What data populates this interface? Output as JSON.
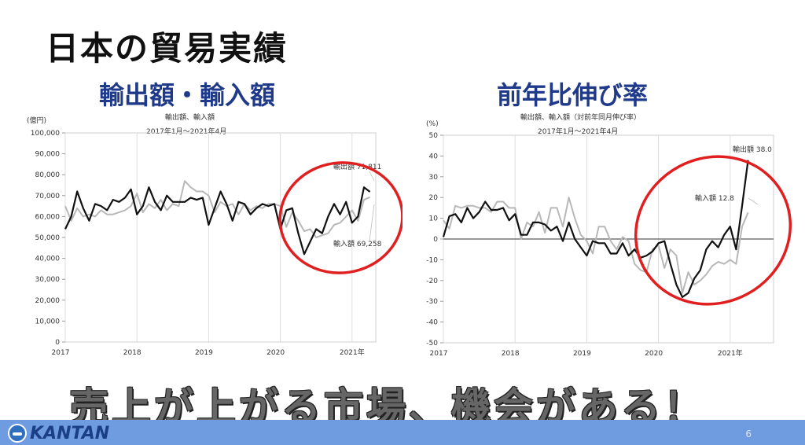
{
  "slide": {
    "title": "日本の貿易実績",
    "left_heading": "輸出額・輸入額",
    "right_heading": "前年比伸び率",
    "slogan": "売上が上がる市場、機会がある！",
    "brand": "KANTAN",
    "page_number": "6"
  },
  "colors": {
    "export_line": "#111111",
    "import_line": "#b8b8b8",
    "annotation_circle": "#e02020",
    "footer_bar": "#6f9be0",
    "heading": "#1f3a8a"
  },
  "chart_data": [
    {
      "type": "line",
      "title": "輸出額、輸入額",
      "subtitle": "2017年1月～2021年4月",
      "unit_label": "(億円)",
      "ylim": [
        0,
        100000
      ],
      "yticks": [
        "0",
        "10,000",
        "20,000",
        "30,000",
        "40,000",
        "50,000",
        "60,000",
        "70,000",
        "80,000",
        "90,000",
        "100,000"
      ],
      "x_ticks": [
        "2017",
        "2018",
        "2019",
        "2020",
        "2021年"
      ],
      "x_start": "2017-01",
      "grid": "vertical-year-lines",
      "series": [
        {
          "name": "輸出額",
          "label_value": "71,811",
          "values": [
            54000,
            60000,
            72000,
            64000,
            58000,
            66000,
            65000,
            63000,
            68000,
            67000,
            69000,
            73000,
            61000,
            65000,
            74000,
            67000,
            63000,
            70000,
            67000,
            67000,
            67000,
            69000,
            68000,
            69000,
            56000,
            64000,
            72000,
            66000,
            58000,
            67000,
            66000,
            61000,
            64000,
            66000,
            65000,
            66000,
            54000,
            63000,
            64000,
            52000,
            42000,
            48000,
            54000,
            52000,
            60000,
            66000,
            61000,
            67000,
            57000,
            60000,
            74000,
            71811
          ]
        },
        {
          "name": "輸入額",
          "label_value": "69,258",
          "values": [
            65000,
            58000,
            64000,
            60000,
            61000,
            60000,
            63000,
            61000,
            61000,
            62000,
            63000,
            65000,
            71000,
            62000,
            66000,
            64000,
            68000,
            63000,
            66000,
            65000,
            77000,
            74000,
            72000,
            72000,
            70000,
            62000,
            67000,
            65000,
            66000,
            61000,
            66000,
            63000,
            65000,
            64000,
            66000,
            66000,
            65000,
            55000,
            62000,
            58000,
            53000,
            54000,
            50000,
            51000,
            52000,
            56000,
            57000,
            60000,
            63000,
            58000,
            68000,
            69258
          ]
        }
      ]
    },
    {
      "type": "line",
      "title": "輸出額、輸入額（対前年同月伸び率）",
      "subtitle": "2017年1月～2021年4月",
      "unit_label": "(%)",
      "ylim": [
        -50,
        50
      ],
      "yticks": [
        "-50",
        "-40",
        "-30",
        "-20",
        "-10",
        "0",
        "10",
        "20",
        "30",
        "40",
        "50"
      ],
      "x_ticks": [
        "2017",
        "2018",
        "2019",
        "2020",
        "2021年"
      ],
      "x_start": "2017-01",
      "grid": "vertical-year-lines",
      "series": [
        {
          "name": "輸出額",
          "label_value": "38.0",
          "values": [
            1,
            11,
            12,
            8,
            15,
            10,
            13,
            18,
            14,
            14,
            15,
            9,
            12,
            2,
            2,
            8,
            8,
            7,
            4,
            6,
            -1,
            8,
            0,
            -4,
            -8,
            -1,
            -2,
            -2,
            -7,
            -7,
            -2,
            -8,
            -5,
            -9,
            -8,
            -6,
            -2,
            -1,
            -12,
            -22,
            -28,
            -26,
            -19,
            -15,
            -5,
            -1,
            -4,
            2,
            6,
            -5,
            16,
            38.0
          ]
        },
        {
          "name": "輸入額",
          "label_value": "12.8",
          "values": [
            9,
            5,
            16,
            15,
            16,
            16,
            15,
            15,
            13,
            18,
            18,
            15,
            15,
            0,
            8,
            6,
            13,
            3,
            15,
            15,
            6,
            20,
            10,
            2,
            -1,
            -7,
            6,
            6,
            -1,
            -5,
            1,
            -1,
            -12,
            -15,
            -16,
            -5,
            -3,
            -14,
            -5,
            -8,
            -26,
            -16,
            -22,
            -20,
            -17,
            -13,
            -11,
            -12,
            -10,
            -12,
            6,
            12.8
          ]
        }
      ]
    }
  ]
}
